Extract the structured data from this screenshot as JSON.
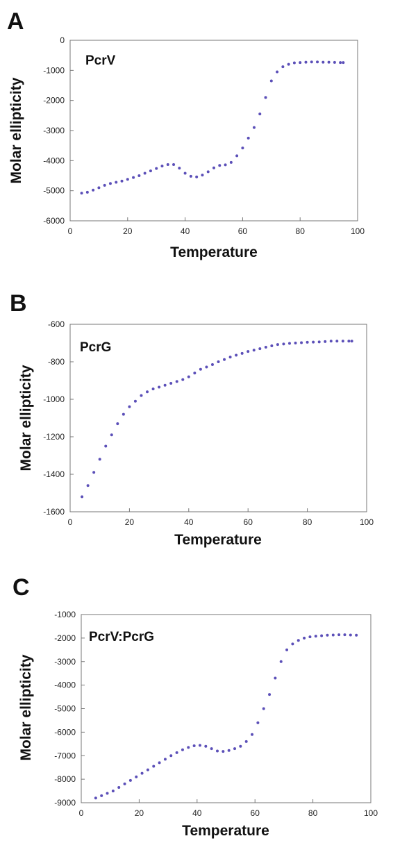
{
  "chart_data": [
    {
      "type": "scatter",
      "panel_label": "A",
      "title": "PcrV",
      "xlabel": "Temperature",
      "ylabel": "Molar ellipticity",
      "xlim": [
        0,
        100
      ],
      "ylim": [
        -6000,
        0
      ],
      "xticks": [
        0,
        20,
        40,
        60,
        80,
        100
      ],
      "yticks": [
        0,
        -1000,
        -2000,
        -3000,
        -4000,
        -5000,
        -6000
      ],
      "grid": false,
      "series": [
        {
          "color": "#5b4fb8",
          "points": [
            [
              4,
              -5080
            ],
            [
              6,
              -5050
            ],
            [
              8,
              -4980
            ],
            [
              10,
              -4900
            ],
            [
              12,
              -4820
            ],
            [
              14,
              -4760
            ],
            [
              16,
              -4720
            ],
            [
              18,
              -4680
            ],
            [
              20,
              -4620
            ],
            [
              22,
              -4560
            ],
            [
              24,
              -4500
            ],
            [
              26,
              -4420
            ],
            [
              28,
              -4340
            ],
            [
              30,
              -4260
            ],
            [
              32,
              -4180
            ],
            [
              34,
              -4130
            ],
            [
              36,
              -4130
            ],
            [
              38,
              -4250
            ],
            [
              40,
              -4420
            ],
            [
              42,
              -4520
            ],
            [
              44,
              -4540
            ],
            [
              46,
              -4480
            ],
            [
              48,
              -4370
            ],
            [
              50,
              -4240
            ],
            [
              52,
              -4160
            ],
            [
              54,
              -4140
            ],
            [
              56,
              -4060
            ],
            [
              58,
              -3840
            ],
            [
              60,
              -3580
            ],
            [
              62,
              -3250
            ],
            [
              64,
              -2900
            ],
            [
              66,
              -2450
            ],
            [
              68,
              -1900
            ],
            [
              70,
              -1350
            ],
            [
              72,
              -1050
            ],
            [
              74,
              -880
            ],
            [
              76,
              -800
            ],
            [
              78,
              -750
            ],
            [
              80,
              -740
            ],
            [
              82,
              -730
            ],
            [
              84,
              -720
            ],
            [
              86,
              -720
            ],
            [
              88,
              -730
            ],
            [
              90,
              -730
            ],
            [
              92,
              -735
            ],
            [
              94,
              -740
            ],
            [
              95,
              -740
            ]
          ]
        }
      ]
    },
    {
      "type": "scatter",
      "panel_label": "B",
      "title": "PcrG",
      "xlabel": "Temperature",
      "ylabel": "Molar ellipticity",
      "xlim": [
        0,
        100
      ],
      "ylim": [
        -1600,
        -600
      ],
      "xticks": [
        0,
        20,
        40,
        60,
        80,
        100
      ],
      "yticks": [
        -600,
        -800,
        -1000,
        -1200,
        -1400,
        -1600
      ],
      "grid": false,
      "series": [
        {
          "color": "#5b4fb8",
          "points": [
            [
              4,
              -1520
            ],
            [
              6,
              -1460
            ],
            [
              8,
              -1390
            ],
            [
              10,
              -1320
            ],
            [
              12,
              -1250
            ],
            [
              14,
              -1190
            ],
            [
              16,
              -1130
            ],
            [
              18,
              -1080
            ],
            [
              20,
              -1040
            ],
            [
              22,
              -1010
            ],
            [
              24,
              -980
            ],
            [
              26,
              -960
            ],
            [
              28,
              -945
            ],
            [
              30,
              -935
            ],
            [
              32,
              -925
            ],
            [
              34,
              -915
            ],
            [
              36,
              -905
            ],
            [
              38,
              -895
            ],
            [
              40,
              -880
            ],
            [
              42,
              -860
            ],
            [
              44,
              -840
            ],
            [
              46,
              -828
            ],
            [
              48,
              -815
            ],
            [
              50,
              -800
            ],
            [
              52,
              -788
            ],
            [
              54,
              -775
            ],
            [
              56,
              -765
            ],
            [
              58,
              -755
            ],
            [
              60,
              -745
            ],
            [
              62,
              -738
            ],
            [
              64,
              -730
            ],
            [
              66,
              -722
            ],
            [
              68,
              -715
            ],
            [
              70,
              -708
            ],
            [
              72,
              -705
            ],
            [
              74,
              -702
            ],
            [
              76,
              -700
            ],
            [
              78,
              -698
            ],
            [
              80,
              -696
            ],
            [
              82,
              -695
            ],
            [
              84,
              -694
            ],
            [
              86,
              -692
            ],
            [
              88,
              -690
            ],
            [
              90,
              -690
            ],
            [
              92,
              -690
            ],
            [
              94,
              -690
            ],
            [
              95,
              -690
            ]
          ]
        }
      ]
    },
    {
      "type": "scatter",
      "panel_label": "C",
      "title": "PcrV:PcrG",
      "xlabel": "Temperature",
      "ylabel": "Molar ellipticity",
      "xlim": [
        0,
        100
      ],
      "ylim": [
        -9000,
        -1000
      ],
      "xticks": [
        0,
        20,
        40,
        60,
        80,
        100
      ],
      "yticks": [
        -1000,
        -2000,
        -3000,
        -4000,
        -5000,
        -6000,
        -7000,
        -8000,
        -9000
      ],
      "grid": false,
      "series": [
        {
          "color": "#5b4fb8",
          "points": [
            [
              5,
              -8800
            ],
            [
              7,
              -8700
            ],
            [
              9,
              -8600
            ],
            [
              11,
              -8500
            ],
            [
              13,
              -8350
            ],
            [
              15,
              -8200
            ],
            [
              17,
              -8050
            ],
            [
              19,
              -7900
            ],
            [
              21,
              -7750
            ],
            [
              23,
              -7600
            ],
            [
              25,
              -7450
            ],
            [
              27,
              -7300
            ],
            [
              29,
              -7150
            ],
            [
              31,
              -7000
            ],
            [
              33,
              -6870
            ],
            [
              35,
              -6750
            ],
            [
              37,
              -6650
            ],
            [
              39,
              -6580
            ],
            [
              41,
              -6560
            ],
            [
              43,
              -6600
            ],
            [
              45,
              -6700
            ],
            [
              47,
              -6800
            ],
            [
              49,
              -6820
            ],
            [
              51,
              -6780
            ],
            [
              53,
              -6700
            ],
            [
              55,
              -6600
            ],
            [
              57,
              -6400
            ],
            [
              59,
              -6100
            ],
            [
              61,
              -5600
            ],
            [
              63,
              -5000
            ],
            [
              65,
              -4400
            ],
            [
              67,
              -3700
            ],
            [
              69,
              -3000
            ],
            [
              71,
              -2500
            ],
            [
              73,
              -2250
            ],
            [
              75,
              -2100
            ],
            [
              77,
              -2000
            ],
            [
              79,
              -1950
            ],
            [
              81,
              -1920
            ],
            [
              83,
              -1900
            ],
            [
              85,
              -1880
            ],
            [
              87,
              -1870
            ],
            [
              89,
              -1860
            ],
            [
              91,
              -1860
            ],
            [
              93,
              -1870
            ],
            [
              95,
              -1880
            ]
          ]
        }
      ]
    }
  ]
}
